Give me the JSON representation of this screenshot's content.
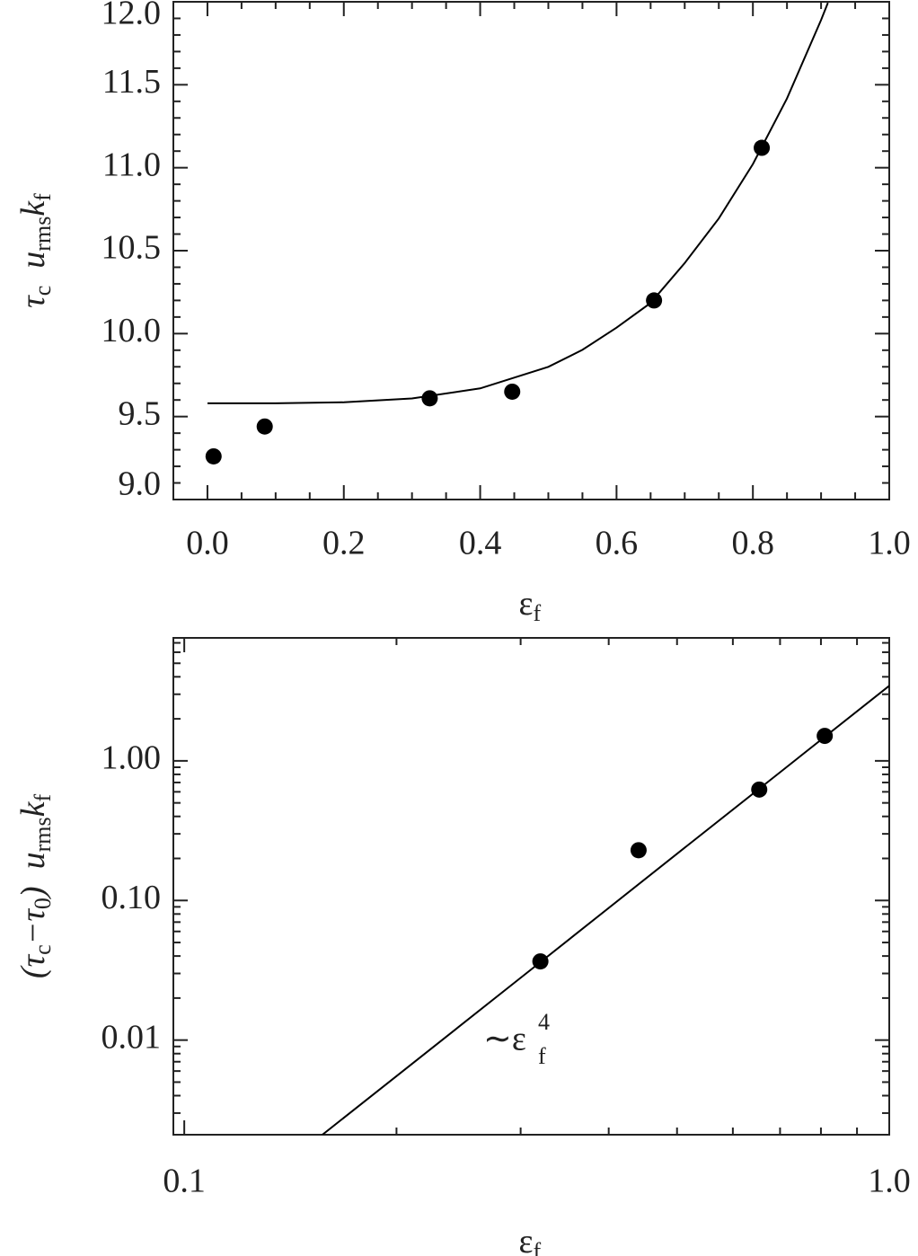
{
  "chart_data": [
    {
      "type": "scatter",
      "xlabel": [
        "ε",
        "f"
      ],
      "ylabel": [
        "τ",
        "c",
        "  u",
        "rms",
        "k",
        "f"
      ],
      "xlim": [
        -0.05,
        1.0
      ],
      "ylim": [
        9.0,
        12.0
      ],
      "xticks": [
        {
          "value": 0,
          "label": "0.0"
        },
        0.2,
        0.4,
        0.6,
        0.8,
        {
          "value": 1,
          "label": "1.0"
        }
      ],
      "yticks": [
        {
          "value": 9,
          "label": "9.0"
        },
        9.5,
        {
          "value": 10,
          "label": "10.0"
        },
        10.5,
        {
          "value": 11,
          "label": "11.0"
        },
        11.5,
        {
          "value": 12,
          "label": "12.0"
        }
      ],
      "series": [
        {
          "type": "scatter",
          "color": "#000000",
          "x": [
            0.009,
            0.084,
            0.326,
            0.447,
            0.655,
            0.813
          ],
          "values": [
            9.26,
            9.44,
            9.61,
            9.65,
            10.2,
            11.12
          ]
        },
        {
          "type": "line",
          "color": "#000000",
          "x": [
            0,
            0.1,
            0.2,
            0.3,
            0.4,
            0.5,
            0.55,
            0.6,
            0.65,
            0.7,
            0.75,
            0.8,
            0.85,
            0.9,
            0.91
          ],
          "values": [
            9.58,
            9.58,
            9.586,
            9.609,
            9.67,
            9.8,
            9.902,
            10.036,
            10.185,
            10.425,
            10.694,
            11.022,
            11.417,
            11.89,
            11.994
          ]
        }
      ]
    },
    {
      "type": "scatter",
      "xscale": "log",
      "yscale": "log",
      "xlabel": [
        "ε",
        "f"
      ],
      "ylabel": [
        "(τ",
        "c",
        "−τ",
        "0",
        ")  u",
        "rms",
        "k",
        "f"
      ],
      "annotation": {
        "text": "∼ε",
        "sub": "f",
        "sup": "4"
      },
      "xlim": [
        0.0965,
        1.0
      ],
      "ylim": [
        0.0021,
        7.6
      ],
      "xticks": [
        0.1,
        {
          "value": 1,
          "label": "1.0"
        }
      ],
      "yticks": [
        0.01,
        {
          "value": 0.1,
          "label": "0.10"
        },
        {
          "value": 1,
          "label": "1.00"
        }
      ],
      "series": [
        {
          "type": "scatter",
          "color": "#000000",
          "x": [
            0.32,
            0.441,
            0.654,
            0.81
          ],
          "values": [
            0.0366,
            0.229,
            0.623,
            1.51
          ]
        },
        {
          "type": "line",
          "color": "#000000",
          "x": [
            0.15,
            0.2,
            0.3,
            0.5,
            0.7,
            1.0
          ],
          "values": [
            0.00175,
            0.00552,
            0.0279,
            0.216,
            0.828,
            3.45
          ]
        }
      ]
    }
  ]
}
